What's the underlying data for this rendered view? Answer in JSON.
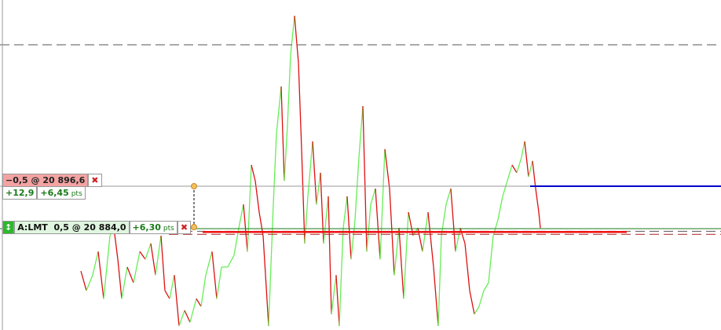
{
  "orders": [
    {
      "position": "−0,5 @ 20 896,6",
      "pnl": "+12,9",
      "pts": "+6,45",
      "unit": "pts"
    },
    {
      "order_type": "A:LMT",
      "position": "0,5 @ 20 884,0",
      "pts": "+6,30",
      "unit": "pts"
    }
  ],
  "chart_data": {
    "type": "line",
    "x": [
      103,
      110,
      118,
      125,
      132,
      140,
      145,
      150,
      155,
      162,
      170,
      178,
      185,
      192,
      198,
      205,
      210,
      216,
      222,
      228,
      235,
      242,
      250,
      256,
      262,
      270,
      276,
      282,
      290,
      298,
      305,
      310,
      315,
      320,
      325,
      330,
      335,
      342,
      348,
      352,
      358,
      362,
      366,
      370,
      375,
      380,
      384,
      388,
      392,
      398,
      403,
      408,
      412,
      418,
      422,
      428,
      432,
      437,
      442,
      447,
      452,
      457,
      462,
      467,
      472,
      478,
      484,
      490,
      496,
      502,
      508,
      514,
      520,
      526,
      532,
      538,
      545,
      552,
      558,
      562,
      568,
      574,
      580,
      586,
      592,
      598,
      604,
      610,
      616,
      622,
      628,
      634,
      640,
      646,
      652,
      658,
      664,
      668,
      673,
      678,
      682,
      686,
      688
    ],
    "values": [
      20871.4,
      20865.6,
      20870.2,
      20877.2,
      20863.2,
      20881.9,
      20884.2,
      20874.9,
      20863.2,
      20872.6,
      20867.9,
      20877.2,
      20874.9,
      20879.6,
      20870.2,
      20881.9,
      20865.6,
      20863.2,
      20870.2,
      20855.1,
      20859.7,
      20856.2,
      20863.2,
      20860.9,
      20870.2,
      20877.2,
      20863.2,
      20872.6,
      20872.6,
      20876.1,
      20885.4,
      20891.2,
      20877.2,
      20902.9,
      20898.2,
      20888.9,
      20881.9,
      20855.1,
      20891.2,
      20912.2,
      20926.2,
      20898.2,
      20914.6,
      20935.6,
      20947.2,
      20933.2,
      20907.6,
      20879.6,
      20893.6,
      20909.9,
      20891.2,
      20900.6,
      20879.6,
      20893.6,
      20858.6,
      20870.2,
      20855.1,
      20884.2,
      20893.6,
      20874.9,
      20886.6,
      20905.2,
      20920.4,
      20877.2,
      20891.2,
      20895.9,
      20874.9,
      20907.6,
      20895.9,
      20870.2,
      20884.2,
      20863.2,
      20888.9,
      20881.9,
      20884.2,
      20877.2,
      20888.9,
      20872.6,
      20855.1,
      20881.9,
      20891.2,
      20895.9,
      20877.2,
      20884.2,
      20879.6,
      20865.6,
      20858.6,
      20860.9,
      20865.6,
      20867.9,
      20881.9,
      20886.6,
      20893.6,
      20898.2,
      20902.9,
      20900.6,
      20905.2,
      20909.9,
      20899.4,
      20904.1,
      20895.9,
      20888.9,
      20884.2
    ],
    "xlim": [
      0,
      918
    ],
    "ylim": [
      20853.9,
      20951.9
    ],
    "up_color": "#66ee55",
    "down_color": "#dd1111",
    "levels": [
      {
        "price": 20938.6,
        "color": "#555555",
        "style": "dashed",
        "width": 1,
        "from": 0,
        "to": 918
      },
      {
        "price": 20896.6,
        "color": "#999999",
        "style": "solid",
        "width": 1,
        "from": 0,
        "to": 918
      },
      {
        "price": 20896.6,
        "color": "#0000cc",
        "style": "solid",
        "width": 2,
        "from": 675,
        "to": 918
      },
      {
        "price": 20884.0,
        "color": "#1a7a1a",
        "style": "solid",
        "width": 1,
        "from": 0,
        "to": 918
      },
      {
        "price": 20883.2,
        "color": "#555555",
        "style": "dashed",
        "width": 1,
        "from": 215,
        "to": 918
      },
      {
        "price": 20882.3,
        "color": "#aa2222",
        "style": "dashed",
        "width": 1,
        "from": 215,
        "to": 918
      },
      {
        "price": 20883.0,
        "color": "#ee1111",
        "style": "solid",
        "width": 2.5,
        "from": 258,
        "to": 798
      }
    ]
  }
}
